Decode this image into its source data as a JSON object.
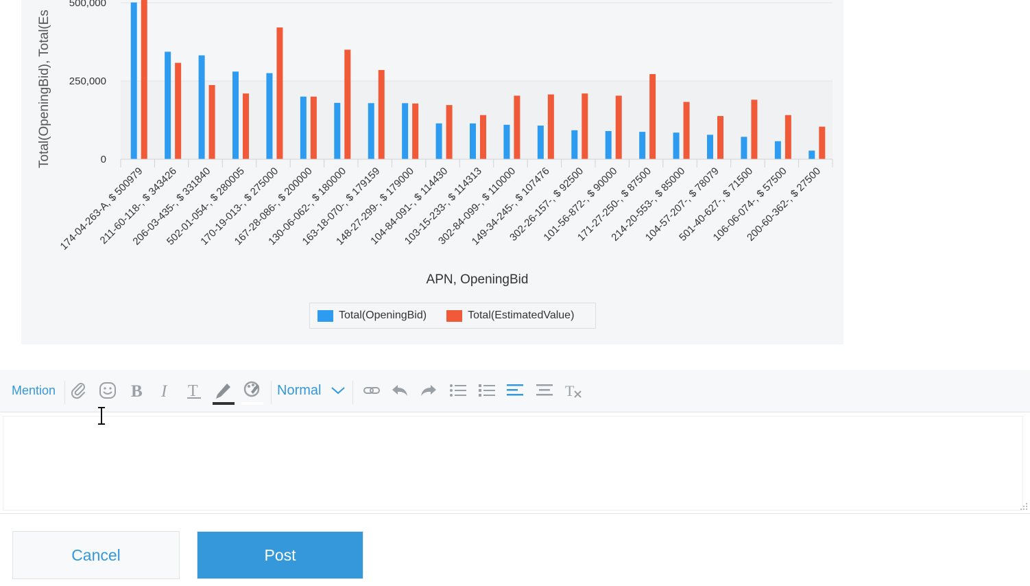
{
  "chart_data": {
    "type": "bar",
    "xlabel": "APN, OpeningBid",
    "ylabel": "Total(OpeningBid), Total(Es",
    "y_ticks": [
      "0",
      "250,000",
      "500,000"
    ],
    "ylim": [
      0,
      500000
    ],
    "legend_position": "bottom",
    "categories": [
      "174-04-263-A, $ 500979",
      "211-60-118-, $ 343426",
      "206-03-435-, $ 331840",
      "502-01-054-, $ 280005",
      "170-19-013-, $ 275000",
      "167-28-086-, $ 200000",
      "130-06-062-, $ 180000",
      "163-18-070-, $ 179159",
      "148-27-299-, $ 179000",
      "104-84-091-, $ 114430",
      "103-15-233-, $ 114313",
      "302-84-099-, $ 110000",
      "149-34-245-, $ 107476",
      "302-26-157-, $ 92500",
      "101-56-872-, $ 90000",
      "171-27-250-, $ 87500",
      "214-20-553-, $ 85000",
      "104-57-207-, $ 78079",
      "501-40-627-, $ 71500",
      "106-06-074-, $ 57500",
      "200-60-362-, $ 27500"
    ],
    "series": [
      {
        "name": "Total(OpeningBid)",
        "color": "#2d9cf0",
        "values": [
          500979,
          343426,
          331840,
          280005,
          275000,
          200000,
          180000,
          179159,
          179000,
          114430,
          114313,
          110000,
          107476,
          92500,
          90000,
          87500,
          85000,
          78079,
          71500,
          57500,
          27500
        ]
      },
      {
        "name": "Total(EstimatedValue)",
        "color": "#f05a38",
        "values": [
          510000,
          308000,
          237000,
          210000,
          421000,
          200000,
          350000,
          285000,
          178000,
          173000,
          141000,
          203000,
          207000,
          210000,
          203000,
          272000,
          183000,
          138000,
          190000,
          141000,
          104000
        ]
      }
    ]
  },
  "toolbar": {
    "mention_label": "Mention",
    "format_value": "Normal",
    "accent_color": "#3498db"
  },
  "actions": {
    "cancel_label": "Cancel",
    "post_label": "Post"
  }
}
